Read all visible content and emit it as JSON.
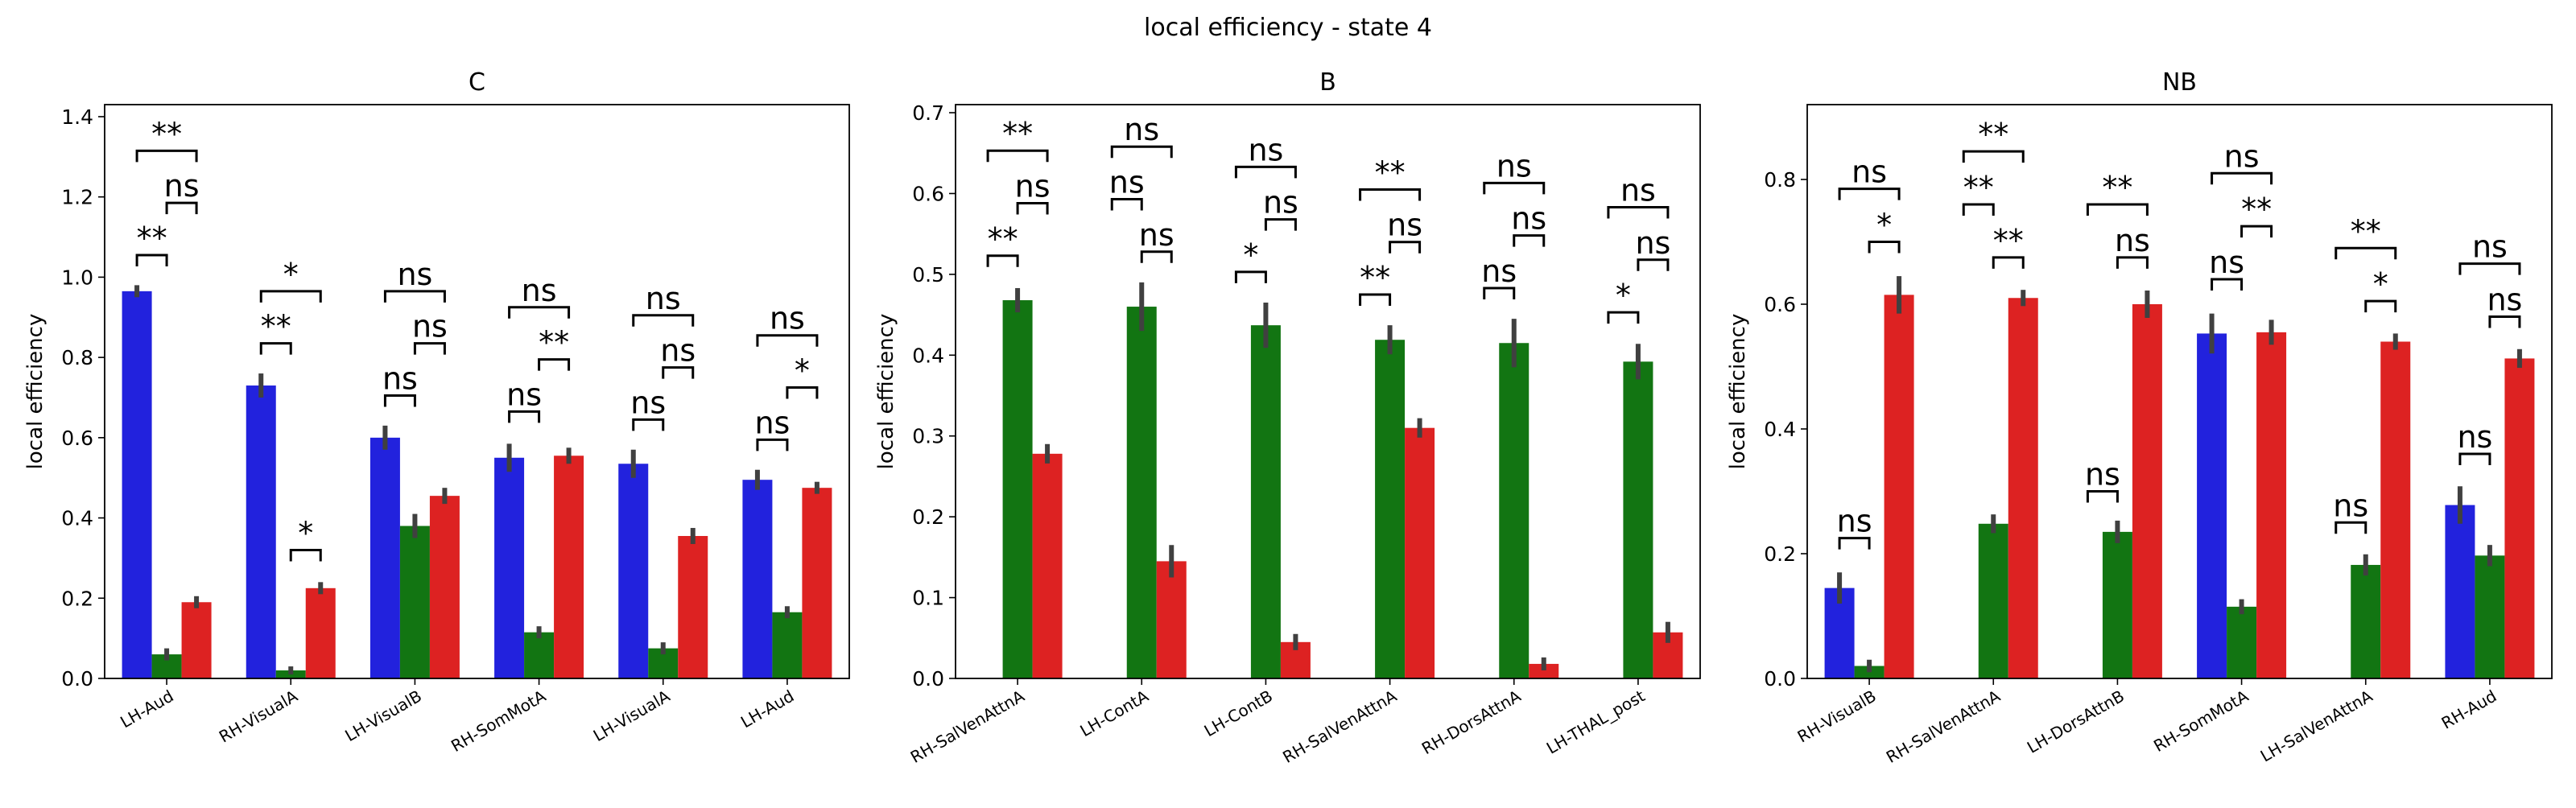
{
  "figure_title": "local efficiency - state 4",
  "colors": {
    "blue": "#2222dd",
    "green": "#127512",
    "red": "#dd2222",
    "errbar": "#404040"
  },
  "chart_data": [
    {
      "type": "bar",
      "title": "C",
      "ylabel": "local efficiency",
      "ylim": [
        0,
        1.43
      ],
      "yticks": [
        "0.0",
        "0.2",
        "0.4",
        "0.6",
        "0.8",
        "1.0",
        "1.2",
        "1.4"
      ],
      "categories": [
        "LH-Aud",
        "RH-VisualA",
        "LH-VisualB",
        "RH-SomMotA",
        "LH-VisualA",
        "LH-Aud"
      ],
      "series": [
        {
          "color": "blue",
          "values": [
            0.965,
            0.73,
            0.6,
            0.55,
            0.535,
            0.495
          ],
          "err": [
            0.015,
            0.03,
            0.03,
            0.035,
            0.035,
            0.025
          ]
        },
        {
          "color": "green",
          "values": [
            0.06,
            0.02,
            0.38,
            0.115,
            0.075,
            0.165
          ],
          "err": [
            0.015,
            0.01,
            0.03,
            0.015,
            0.015,
            0.015
          ]
        },
        {
          "color": "red",
          "values": [
            0.19,
            0.225,
            0.455,
            0.555,
            0.355,
            0.475
          ],
          "err": [
            0.015,
            0.015,
            0.02,
            0.02,
            0.02,
            0.015
          ]
        }
      ],
      "annotations": [
        {
          "cat": 0,
          "from": 0,
          "to": 1,
          "y": 1.055,
          "label": "**"
        },
        {
          "cat": 0,
          "from": 1,
          "to": 2,
          "y": 1.185,
          "label": "ns"
        },
        {
          "cat": 0,
          "from": 0,
          "to": 2,
          "y": 1.315,
          "label": "**"
        },
        {
          "cat": 1,
          "from": 0,
          "to": 1,
          "y": 0.835,
          "label": "**"
        },
        {
          "cat": 1,
          "from": 1,
          "to": 2,
          "y": 0.32,
          "label": "*"
        },
        {
          "cat": 1,
          "from": 0,
          "to": 2,
          "y": 0.965,
          "label": "*"
        },
        {
          "cat": 2,
          "from": 0,
          "to": 1,
          "y": 0.705,
          "label": "ns"
        },
        {
          "cat": 2,
          "from": 1,
          "to": 2,
          "y": 0.835,
          "label": "ns"
        },
        {
          "cat": 2,
          "from": 0,
          "to": 2,
          "y": 0.965,
          "label": "ns"
        },
        {
          "cat": 3,
          "from": 0,
          "to": 1,
          "y": 0.665,
          "label": "ns"
        },
        {
          "cat": 3,
          "from": 1,
          "to": 2,
          "y": 0.795,
          "label": "**"
        },
        {
          "cat": 3,
          "from": 0,
          "to": 2,
          "y": 0.925,
          "label": "ns"
        },
        {
          "cat": 4,
          "from": 0,
          "to": 1,
          "y": 0.645,
          "label": "ns"
        },
        {
          "cat": 4,
          "from": 1,
          "to": 2,
          "y": 0.775,
          "label": "ns"
        },
        {
          "cat": 4,
          "from": 0,
          "to": 2,
          "y": 0.905,
          "label": "ns"
        },
        {
          "cat": 5,
          "from": 0,
          "to": 1,
          "y": 0.595,
          "label": "ns"
        },
        {
          "cat": 5,
          "from": 1,
          "to": 2,
          "y": 0.725,
          "label": "*"
        },
        {
          "cat": 5,
          "from": 0,
          "to": 2,
          "y": 0.855,
          "label": "ns"
        }
      ]
    },
    {
      "type": "bar",
      "title": "B",
      "ylabel": "local efficiency",
      "ylim": [
        0,
        0.71
      ],
      "yticks": [
        "0.0",
        "0.1",
        "0.2",
        "0.3",
        "0.4",
        "0.5",
        "0.6",
        "0.7"
      ],
      "categories": [
        "RH-SalVenAttnA",
        "LH-ContA",
        "LH-ContB",
        "RH-SalVenAttnA",
        "RH-DorsAttnA",
        "LH-THAL_post"
      ],
      "series": [
        {
          "color": "blue",
          "values": [
            0,
            0,
            0,
            0,
            0,
            0
          ],
          "err": [
            0,
            0,
            0,
            0,
            0,
            0
          ]
        },
        {
          "color": "green",
          "values": [
            0.468,
            0.46,
            0.437,
            0.419,
            0.415,
            0.392
          ],
          "err": [
            0.015,
            0.03,
            0.028,
            0.018,
            0.03,
            0.022
          ]
        },
        {
          "color": "red",
          "values": [
            0.278,
            0.145,
            0.045,
            0.31,
            0.018,
            0.057
          ],
          "err": [
            0.012,
            0.02,
            0.01,
            0.012,
            0.008,
            0.013
          ]
        }
      ],
      "annotations": [
        {
          "cat": 0,
          "from": 0,
          "to": 1,
          "y": 0.523,
          "label": "**"
        },
        {
          "cat": 0,
          "from": 1,
          "to": 2,
          "y": 0.588,
          "label": "ns"
        },
        {
          "cat": 0,
          "from": 0,
          "to": 2,
          "y": 0.653,
          "label": "**"
        },
        {
          "cat": 1,
          "from": 0,
          "to": 1,
          "y": 0.593,
          "label": "ns"
        },
        {
          "cat": 1,
          "from": 1,
          "to": 2,
          "y": 0.528,
          "label": "ns"
        },
        {
          "cat": 1,
          "from": 0,
          "to": 2,
          "y": 0.658,
          "label": "ns"
        },
        {
          "cat": 2,
          "from": 0,
          "to": 1,
          "y": 0.503,
          "label": "*"
        },
        {
          "cat": 2,
          "from": 1,
          "to": 2,
          "y": 0.568,
          "label": "ns"
        },
        {
          "cat": 2,
          "from": 0,
          "to": 2,
          "y": 0.633,
          "label": "ns"
        },
        {
          "cat": 3,
          "from": 0,
          "to": 1,
          "y": 0.475,
          "label": "**"
        },
        {
          "cat": 3,
          "from": 1,
          "to": 2,
          "y": 0.54,
          "label": "ns"
        },
        {
          "cat": 3,
          "from": 0,
          "to": 2,
          "y": 0.605,
          "label": "**"
        },
        {
          "cat": 4,
          "from": 0,
          "to": 1,
          "y": 0.483,
          "label": "ns"
        },
        {
          "cat": 4,
          "from": 1,
          "to": 2,
          "y": 0.548,
          "label": "ns"
        },
        {
          "cat": 4,
          "from": 0,
          "to": 2,
          "y": 0.613,
          "label": "ns"
        },
        {
          "cat": 5,
          "from": 0,
          "to": 1,
          "y": 0.453,
          "label": "*"
        },
        {
          "cat": 5,
          "from": 1,
          "to": 2,
          "y": 0.518,
          "label": "ns"
        },
        {
          "cat": 5,
          "from": 0,
          "to": 2,
          "y": 0.583,
          "label": "ns"
        }
      ]
    },
    {
      "type": "bar",
      "title": "NB",
      "ylabel": "local efficiency",
      "ylim": [
        0,
        0.92
      ],
      "yticks": [
        "0.0",
        "0.2",
        "0.4",
        "0.6",
        "0.8"
      ],
      "categories": [
        "RH-VisualB",
        "RH-SalVenAttnA",
        "LH-DorsAttnB",
        "RH-SomMotA",
        "LH-SalVenAttnA",
        "RH-Aud"
      ],
      "series": [
        {
          "color": "blue",
          "values": [
            0.145,
            0,
            0,
            0.553,
            0,
            0.278
          ],
          "err": [
            0.025,
            0,
            0,
            0.032,
            0,
            0.03
          ]
        },
        {
          "color": "green",
          "values": [
            0.02,
            0.248,
            0.235,
            0.115,
            0.182,
            0.197
          ],
          "err": [
            0.01,
            0.015,
            0.018,
            0.012,
            0.017,
            0.017
          ]
        },
        {
          "color": "red",
          "values": [
            0.615,
            0.61,
            0.6,
            0.555,
            0.54,
            0.513
          ],
          "err": [
            0.03,
            0.013,
            0.022,
            0.02,
            0.013,
            0.015
          ]
        }
      ],
      "annotations": [
        {
          "cat": 0,
          "from": 0,
          "to": 1,
          "y": 0.225,
          "label": "ns"
        },
        {
          "cat": 0,
          "from": 1,
          "to": 2,
          "y": 0.7,
          "label": "*"
        },
        {
          "cat": 0,
          "from": 0,
          "to": 2,
          "y": 0.785,
          "label": "ns"
        },
        {
          "cat": 1,
          "from": 0,
          "to": 1,
          "y": 0.76,
          "label": "**"
        },
        {
          "cat": 1,
          "from": 1,
          "to": 2,
          "y": 0.675,
          "label": "**"
        },
        {
          "cat": 1,
          "from": 0,
          "to": 2,
          "y": 0.845,
          "label": "**"
        },
        {
          "cat": 2,
          "from": 0,
          "to": 1,
          "y": 0.3,
          "label": "ns"
        },
        {
          "cat": 2,
          "from": 1,
          "to": 2,
          "y": 0.675,
          "label": "ns"
        },
        {
          "cat": 2,
          "from": 0,
          "to": 2,
          "y": 0.76,
          "label": "**"
        },
        {
          "cat": 3,
          "from": 0,
          "to": 1,
          "y": 0.64,
          "label": "ns"
        },
        {
          "cat": 3,
          "from": 1,
          "to": 2,
          "y": 0.725,
          "label": "**"
        },
        {
          "cat": 3,
          "from": 0,
          "to": 2,
          "y": 0.81,
          "label": "ns"
        },
        {
          "cat": 4,
          "from": 0,
          "to": 1,
          "y": 0.25,
          "label": "ns"
        },
        {
          "cat": 4,
          "from": 1,
          "to": 2,
          "y": 0.605,
          "label": "*"
        },
        {
          "cat": 4,
          "from": 0,
          "to": 2,
          "y": 0.69,
          "label": "**"
        },
        {
          "cat": 5,
          "from": 0,
          "to": 1,
          "y": 0.36,
          "label": "ns"
        },
        {
          "cat": 5,
          "from": 1,
          "to": 2,
          "y": 0.58,
          "label": "ns"
        },
        {
          "cat": 5,
          "from": 0,
          "to": 2,
          "y": 0.665,
          "label": "ns"
        }
      ]
    }
  ]
}
